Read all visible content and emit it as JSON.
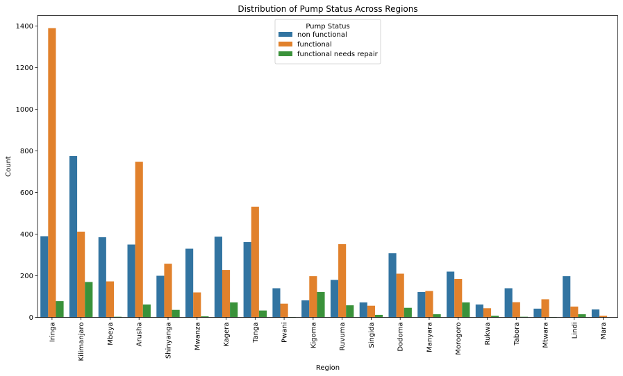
{
  "chart_data": {
    "type": "bar",
    "title": "Distribution of Pump Status Across Regions",
    "xlabel": "Region",
    "ylabel": "Count",
    "ylim": [
      0,
      1450
    ],
    "yticks": [
      0,
      200,
      400,
      600,
      800,
      1000,
      1200,
      1400
    ],
    "grid": false,
    "legend": {
      "title": "Pump Status",
      "placement": "upper-center"
    },
    "categories": [
      "Iringa",
      "Kilimanjaro",
      "Mbeya",
      "Arusha",
      "Shinyanga",
      "Mwanza",
      "Kagera",
      "Tanga",
      "Pwani",
      "Kigoma",
      "Ruvuma",
      "Singida",
      "Dodoma",
      "Manyara",
      "Morogoro",
      "Rukwa",
      "Tabora",
      "Mtwara",
      "Lindi",
      "Mara"
    ],
    "series": [
      {
        "name": "non functional",
        "color": "#3274a1",
        "values": [
          390,
          775,
          385,
          350,
          200,
          330,
          388,
          362,
          140,
          82,
          180,
          72,
          308,
          122,
          220,
          62,
          140,
          42,
          198,
          38
        ]
      },
      {
        "name": "functional",
        "color": "#e1812c",
        "values": [
          1390,
          412,
          173,
          748,
          258,
          120,
          228,
          532,
          66,
          198,
          352,
          56,
          210,
          127,
          185,
          44,
          73,
          87,
          52,
          8
        ]
      },
      {
        "name": "functional needs repair",
        "color": "#3a923a",
        "values": [
          78,
          170,
          3,
          62,
          36,
          5,
          72,
          33,
          2,
          122,
          58,
          12,
          46,
          15,
          72,
          8,
          3,
          2,
          15,
          0
        ]
      }
    ]
  }
}
